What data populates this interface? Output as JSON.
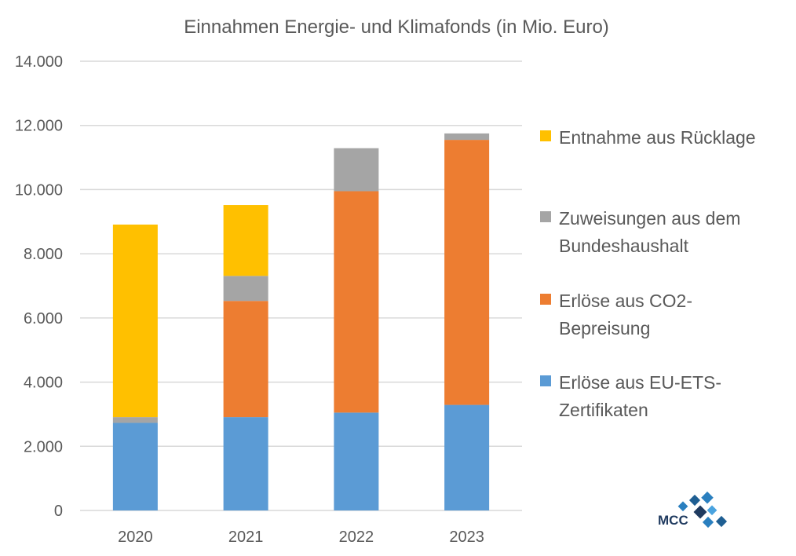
{
  "chart_data": {
    "type": "bar",
    "stacked": true,
    "title": "Einnahmen Energie- und Klimafonds (in Mio. Euro)",
    "xlabel": "",
    "ylabel": "",
    "categories": [
      "2020",
      "2021",
      "2022",
      "2023"
    ],
    "ylim": [
      0,
      14000
    ],
    "yticks": [
      0,
      2000,
      4000,
      6000,
      8000,
      10000,
      12000,
      14000
    ],
    "ytick_labels": [
      "0",
      "2.000",
      "4.000",
      "6.000",
      "8.000",
      "10.000",
      "12.000",
      "14.000"
    ],
    "grid": true,
    "legend_position": "right",
    "series": [
      {
        "name": "Erlöse aus EU-ETS-Zertifikate",
        "legend_lines": [
          "Erlöse aus EU-ETS-",
          "Zertifikaten"
        ],
        "color": "#5b9bd5",
        "values": [
          2730,
          2910,
          3050,
          3290
        ]
      },
      {
        "name": "Erlöse aus CO2-Bepreisung",
        "legend_lines": [
          "Erlöse aus CO2-",
          "Bepreisung"
        ],
        "color": "#ed7d31",
        "values": [
          0,
          3620,
          6900,
          8260
        ]
      },
      {
        "name": "Zuweisungen aus dem Bundeshaushalt",
        "legend_lines": [
          "Zuweisungen aus dem",
          "Bundeshaushalt"
        ],
        "color": "#a5a5a5",
        "values": [
          180,
          780,
          1340,
          200
        ]
      },
      {
        "name": "Entnahme aus Rücklage",
        "legend_lines": [
          "Entnahme aus Rücklage"
        ],
        "color": "#ffc000",
        "values": [
          6000,
          2210,
          0,
          0
        ]
      }
    ]
  },
  "logo": {
    "text": "MCC",
    "color": "#1f6fa8"
  }
}
